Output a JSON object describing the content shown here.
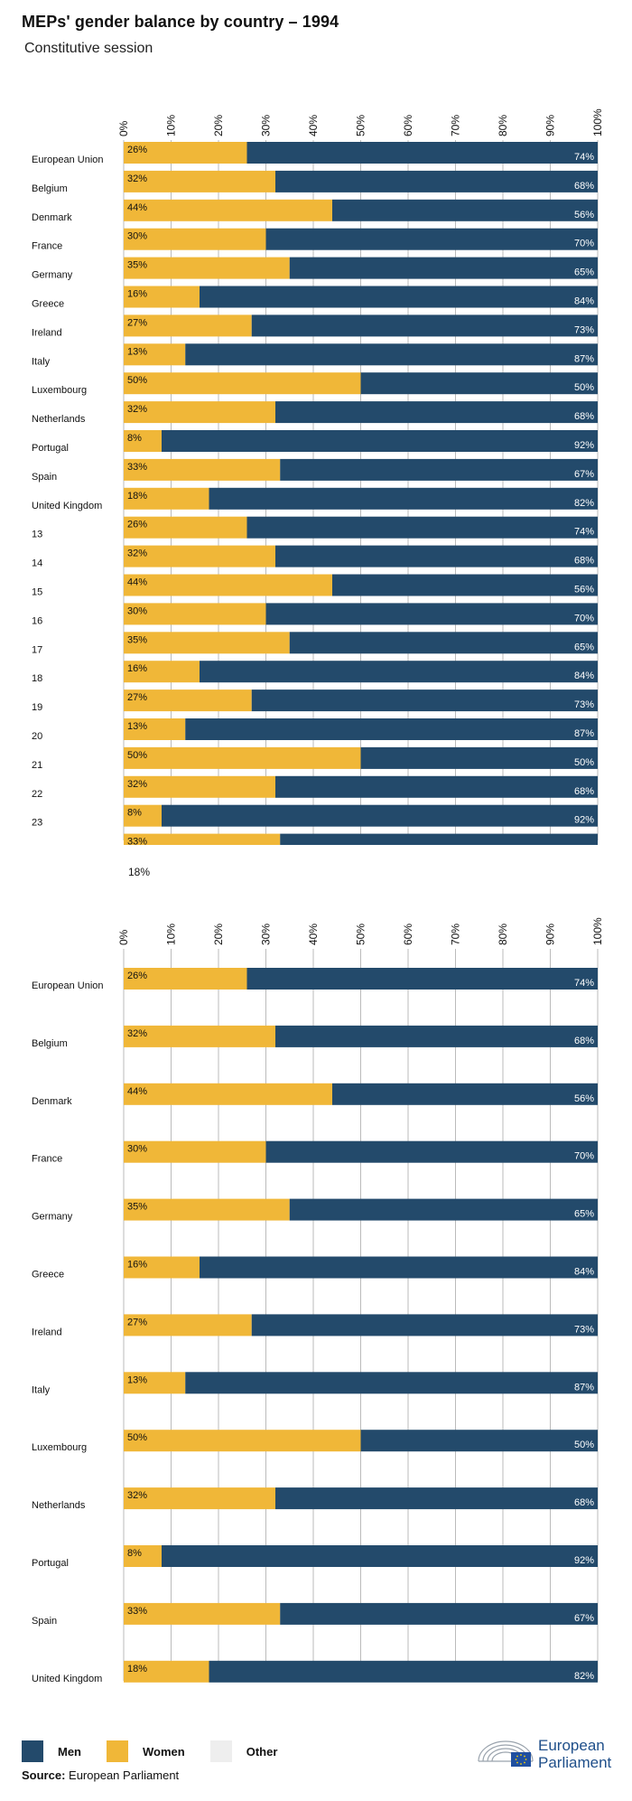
{
  "page": {
    "title": "MEPs' gender balance by country – 1994",
    "subtitle": "Constitutive session",
    "stray_label": "18%"
  },
  "legend": [
    {
      "name": "Men",
      "color": "#234a6b"
    },
    {
      "name": "Women",
      "color": "#f0b738"
    },
    {
      "name": "Other",
      "color": "#eeeeee"
    }
  ],
  "source": {
    "label": "Source:",
    "text": "European Parliament"
  },
  "logo": {
    "line1": "European",
    "line2": "Parliament"
  },
  "colors": {
    "men": "#234a6b",
    "women": "#f0b738",
    "grid": "#bbbbbb"
  },
  "chart_data": [
    {
      "type": "bar",
      "orientation": "horizontal-stacked-100",
      "x_ticks": [
        "0%",
        "10%",
        "20%",
        "30%",
        "40%",
        "50%",
        "60%",
        "70%",
        "80%",
        "90%",
        "100%"
      ],
      "xlim": [
        0,
        100
      ],
      "categories": [
        "European Union",
        "Belgium",
        "Denmark",
        "France",
        "Germany",
        "Greece",
        "Ireland",
        "Italy",
        "Luxembourg",
        "Netherlands",
        "Portugal",
        "Spain",
        "United Kingdom",
        "13",
        "14",
        "15",
        "16",
        "17",
        "18",
        "19",
        "20",
        "21",
        "22",
        "23",
        ""
      ],
      "series": [
        {
          "name": "Women",
          "values": [
            26,
            32,
            44,
            30,
            35,
            16,
            27,
            13,
            50,
            32,
            8,
            33,
            18,
            26,
            32,
            44,
            30,
            35,
            16,
            27,
            13,
            50,
            32,
            8,
            33
          ]
        },
        {
          "name": "Men",
          "values": [
            74,
            68,
            56,
            70,
            65,
            84,
            73,
            87,
            50,
            68,
            92,
            67,
            82,
            74,
            68,
            56,
            70,
            65,
            84,
            73,
            87,
            50,
            68,
            92,
            67
          ]
        }
      ],
      "grid": true
    },
    {
      "type": "bar",
      "orientation": "horizontal-stacked-100",
      "x_ticks": [
        "0%",
        "10%",
        "20%",
        "30%",
        "40%",
        "50%",
        "60%",
        "70%",
        "80%",
        "90%",
        "100%"
      ],
      "xlim": [
        0,
        100
      ],
      "categories": [
        "European Union",
        "Belgium",
        "Denmark",
        "France",
        "Germany",
        "Greece",
        "Ireland",
        "Italy",
        "Luxembourg",
        "Netherlands",
        "Portugal",
        "Spain",
        "United Kingdom"
      ],
      "series": [
        {
          "name": "Women",
          "values": [
            26,
            32,
            44,
            30,
            35,
            16,
            27,
            13,
            50,
            32,
            8,
            33,
            18
          ]
        },
        {
          "name": "Men",
          "values": [
            74,
            68,
            56,
            70,
            65,
            84,
            73,
            87,
            50,
            68,
            92,
            67,
            82
          ]
        }
      ],
      "grid": true
    }
  ]
}
